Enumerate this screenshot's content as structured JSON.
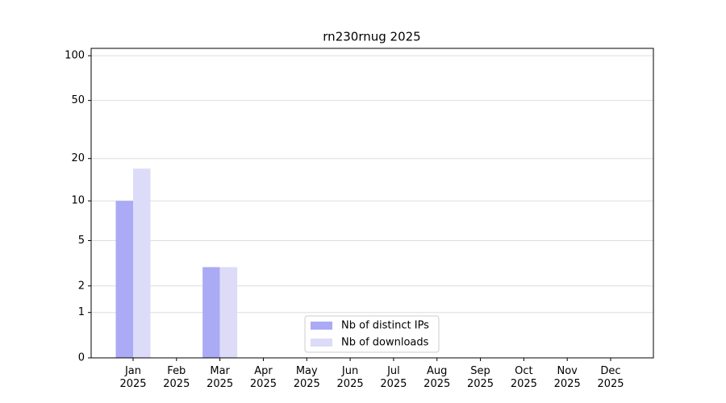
{
  "chart_data": {
    "type": "bar",
    "title": "rn230rnug 2025",
    "scale": "log1p",
    "categories": [
      "Jan 2025",
      "Feb 2025",
      "Mar 2025",
      "Apr 2025",
      "May 2025",
      "Jun 2025",
      "Jul 2025",
      "Aug 2025",
      "Sep 2025",
      "Oct 2025",
      "Nov 2025",
      "Dec 2025"
    ],
    "series": [
      {
        "name": "Nb of distinct IPs",
        "color": "#aaaaf5",
        "values": [
          10,
          0,
          3,
          0,
          0,
          0,
          0,
          0,
          0,
          0,
          0,
          0
        ]
      },
      {
        "name": "Nb of downloads",
        "color": "#dcdcf8",
        "values": [
          17,
          0,
          3,
          0,
          0,
          0,
          0,
          0,
          0,
          0,
          0,
          0
        ]
      }
    ],
    "ylim": [
      0,
      112
    ],
    "yticks": [
      0,
      1,
      2,
      5,
      10,
      20,
      50,
      100
    ],
    "grid": true,
    "legend": "bottom"
  }
}
